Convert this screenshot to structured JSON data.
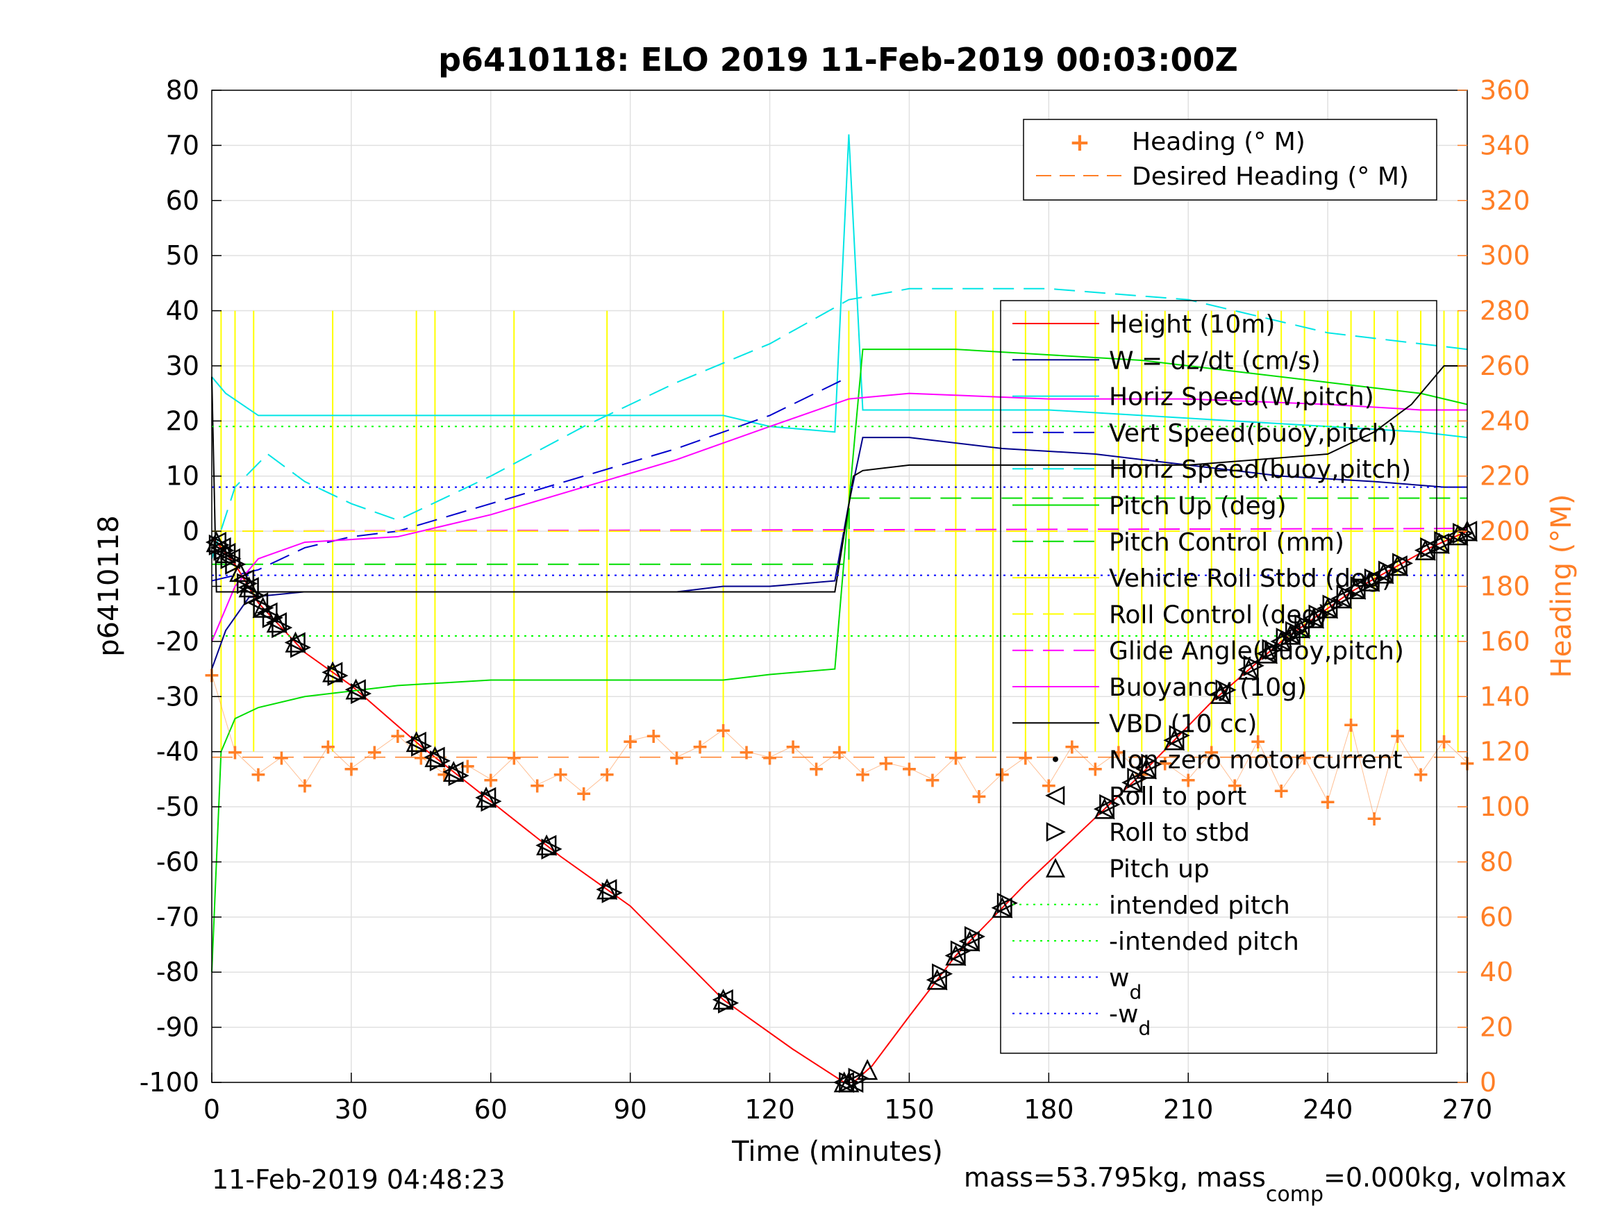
{
  "colors": {
    "heading": "#ff7f27",
    "height": "#ff0000",
    "w": "#00008b",
    "horiz_speed": "#00e5e5",
    "vert_speed_buoy": "#0000cd",
    "pitch_up": "#00dd00",
    "roll": "#ffff00",
    "glide": "#ff00ff",
    "buoyancy": "#ff00ff",
    "vbd": "#000000",
    "wd": "#0000ff",
    "intended": "#00ff00",
    "grid": "#e0e0e0"
  },
  "chart_data": {
    "type": "line",
    "title": "p6410118: ELO 2019 11-Feb-2019 00:03:00Z",
    "xlabel": "Time (minutes)",
    "ylabel": "p6410118",
    "y2label": "Heading (°M)",
    "xlim": [
      0,
      270
    ],
    "ylim": [
      -100,
      80
    ],
    "y2lim": [
      0,
      360
    ],
    "xticks": [
      0,
      30,
      60,
      90,
      120,
      150,
      180,
      210,
      240,
      270
    ],
    "yticks": [
      -100,
      -90,
      -80,
      -70,
      -60,
      -50,
      -40,
      -30,
      -20,
      -10,
      0,
      10,
      20,
      30,
      40,
      50,
      60,
      70,
      80
    ],
    "y2ticks": [
      0,
      20,
      40,
      60,
      80,
      100,
      120,
      140,
      160,
      180,
      200,
      220,
      240,
      260,
      280,
      300,
      320,
      340,
      360
    ],
    "grid": true,
    "legend_right_axis": [
      "Heading (° M)",
      "Desired Heading (° M)"
    ],
    "legend_left_axis": [
      "Height (10m)",
      "W = dz/dt (cm/s)",
      "Horiz Speed(W,pitch)",
      "Vert Speed(buoy,pitch)",
      "Horiz Speed(buoy,pitch)",
      "Pitch Up (deg)",
      "Pitch Control (mm)",
      "Vehicle Roll Stbd (deg)",
      "Roll Control (deg)",
      "Glide Angle(buoy,pitch)",
      "Buoyancy (10g)",
      "VBD (10 cc)",
      "Non-zero motor current",
      "Roll to port",
      "Roll to stbd",
      "Pitch up",
      "intended pitch",
      "-intended pitch",
      "w",
      "-w"
    ],
    "legend_subscript": "d",
    "series": [
      {
        "name": "Height (10m)",
        "x": [
          0,
          5,
          10,
          20,
          30,
          45,
          60,
          75,
          90,
          110,
          125,
          136,
          138,
          142,
          150,
          160,
          175,
          190,
          200,
          215,
          230,
          245,
          262,
          270
        ],
        "values": [
          -1,
          -6,
          -13,
          -22,
          -28,
          -39,
          -49,
          -59,
          -68,
          -85,
          -94,
          -100,
          -100,
          -97,
          -88,
          -77,
          -64,
          -52,
          -44,
          -31,
          -20,
          -11,
          -3,
          0
        ]
      },
      {
        "name": "W = dz/dt (cm/s)",
        "x": [
          0,
          3,
          8,
          20,
          40,
          60,
          80,
          100,
          110,
          120,
          134,
          137,
          140,
          150,
          170,
          190,
          210,
          230,
          250,
          265,
          270
        ],
        "values": [
          -25,
          -18,
          -12,
          -11,
          -11,
          -11,
          -11,
          -11,
          -10,
          -10,
          -9,
          5,
          17,
          17,
          15,
          14,
          12,
          10,
          9,
          8,
          8
        ]
      },
      {
        "name": "Horiz Speed(W,pitch)",
        "x": [
          0,
          3,
          10,
          30,
          60,
          90,
          110,
          120,
          134,
          137,
          140,
          160,
          180,
          200,
          220,
          240,
          260,
          270
        ],
        "values": [
          28,
          25,
          21,
          21,
          21,
          21,
          21,
          19,
          18,
          72,
          22,
          22,
          22,
          21,
          20,
          19,
          18,
          17
        ]
      },
      {
        "name": "Vert Speed(buoy,pitch)",
        "x": [
          0,
          10,
          20,
          30,
          40,
          60,
          80,
          100,
          120,
          137
        ],
        "values": [
          -9,
          -7,
          -3,
          -1,
          0,
          5,
          10,
          15,
          21,
          28
        ]
      },
      {
        "name": "Horiz Speed(buoy,pitch)",
        "x": [
          0,
          5,
          12,
          20,
          30,
          40,
          60,
          80,
          100,
          120,
          137,
          150,
          180,
          210,
          240,
          270
        ],
        "values": [
          -5,
          8,
          14,
          9,
          5,
          2,
          10,
          19,
          27,
          34,
          42,
          44,
          44,
          42,
          36,
          33
        ]
      },
      {
        "name": "Pitch Up (deg)",
        "x": [
          0,
          2,
          5,
          10,
          20,
          40,
          60,
          90,
          110,
          120,
          134,
          137,
          140,
          160,
          180,
          200,
          220,
          240,
          260,
          270
        ],
        "values": [
          -80,
          -40,
          -34,
          -32,
          -30,
          -28,
          -27,
          -27,
          -27,
          -26,
          -25,
          5,
          33,
          33,
          32,
          31,
          29,
          27,
          25,
          23
        ]
      },
      {
        "name": "Pitch Control (mm)",
        "x": [
          0,
          137,
          137.1,
          270
        ],
        "values": [
          -6,
          -6,
          6,
          6
        ]
      },
      {
        "name": "Glide Angle(buoy,pitch)",
        "x": [
          0,
          270
        ],
        "values": [
          0,
          0.5
        ]
      },
      {
        "name": "Buoyancy (10g)",
        "x": [
          0,
          5,
          10,
          20,
          40,
          60,
          80,
          100,
          120,
          137,
          150,
          180,
          210,
          240,
          260,
          270
        ],
        "values": [
          -20,
          -10,
          -5,
          -2,
          -1,
          3,
          8,
          13,
          19,
          24,
          25,
          24,
          24,
          23,
          22,
          22
        ]
      },
      {
        "name": "VBD (10 cc)",
        "x": [
          0,
          1,
          5,
          30,
          60,
          90,
          120,
          134,
          138,
          140,
          150,
          180,
          210,
          240,
          250,
          258,
          265,
          270
        ],
        "values": [
          28,
          -11,
          -11,
          -11,
          -11,
          -11,
          -11,
          -11,
          10,
          11,
          12,
          12,
          12,
          14,
          18,
          23,
          30,
          30
        ]
      },
      {
        "name": "Roll Control (deg)",
        "x": [
          0,
          270
        ],
        "values": [
          0,
          0
        ]
      },
      {
        "name": "intended pitch",
        "x": [
          0,
          270
        ],
        "values": [
          19,
          19
        ]
      },
      {
        "name": "-intended pitch",
        "x": [
          0,
          270
        ],
        "values": [
          -19,
          -19
        ]
      },
      {
        "name": "w",
        "x": [
          0,
          270
        ],
        "values": [
          8,
          8
        ]
      },
      {
        "name": "-w",
        "x": [
          0,
          270
        ],
        "values": [
          -8,
          -8
        ]
      }
    ],
    "roll_spikes": {
      "name": "Vehicle Roll Stbd (deg)",
      "x": [
        2,
        5,
        9,
        26,
        44,
        48,
        65,
        85,
        110,
        137,
        160,
        168,
        175,
        180,
        190,
        195,
        200,
        205,
        210,
        215,
        220,
        225,
        230,
        235,
        240,
        245,
        250,
        255,
        260,
        265,
        268
      ]
    },
    "heading": {
      "name": "Heading (° M)",
      "x": [
        0,
        5,
        10,
        15,
        20,
        25,
        30,
        35,
        40,
        45,
        50,
        55,
        60,
        65,
        70,
        75,
        80,
        85,
        90,
        95,
        100,
        105,
        110,
        115,
        120,
        125,
        130,
        135,
        140,
        145,
        150,
        155,
        160,
        165,
        170,
        175,
        180,
        185,
        190,
        195,
        200,
        205,
        210,
        215,
        220,
        225,
        230,
        235,
        240,
        245,
        250,
        255,
        260,
        265,
        270
      ],
      "values": [
        148,
        120,
        112,
        118,
        108,
        122,
        114,
        120,
        126,
        118,
        112,
        115,
        110,
        118,
        108,
        112,
        105,
        112,
        124,
        126,
        118,
        122,
        128,
        120,
        118,
        122,
        114,
        120,
        112,
        116,
        114,
        110,
        118,
        104,
        112,
        118,
        108,
        122,
        114,
        120,
        112,
        116,
        110,
        120,
        108,
        124,
        106,
        118,
        102,
        130,
        96,
        126,
        112,
        124,
        116
      ]
    },
    "desired_heading": {
      "name": "Desired Heading (° M)",
      "x": [
        0,
        270
      ],
      "values": [
        118,
        118
      ]
    },
    "markers_roll_port": {
      "name": "Roll to port",
      "x": [
        1,
        2,
        3,
        4,
        7,
        8,
        10,
        12,
        14,
        18,
        26,
        31,
        44,
        48,
        52,
        59,
        72,
        85,
        110,
        136,
        138,
        156,
        160,
        163,
        170,
        192,
        198,
        201,
        207,
        217,
        223,
        227,
        230,
        232,
        234,
        237,
        240,
        243,
        246,
        249,
        252,
        255,
        261,
        264,
        268,
        270
      ]
    },
    "markers_roll_stbd": {
      "name": "Roll to stbd",
      "x": [
        1.5,
        2.5,
        4,
        5,
        7.5,
        9,
        11,
        13,
        15,
        19,
        27,
        32,
        45,
        49,
        53,
        60,
        73,
        86,
        111,
        137,
        139,
        157,
        161,
        164,
        171,
        193,
        199,
        202,
        208,
        218,
        224,
        228,
        231,
        233,
        235,
        238,
        241,
        244,
        247,
        250,
        253,
        256,
        262,
        265,
        269
      ]
    },
    "markers_pitch_up": {
      "name": "Pitch up",
      "x": [
        1,
        3,
        6,
        8,
        11,
        14,
        18,
        26,
        31,
        44,
        48,
        52,
        59,
        72,
        85,
        110,
        136,
        137,
        141,
        156,
        160,
        163,
        170,
        192,
        198,
        201,
        207,
        217,
        223,
        227,
        230,
        232,
        234,
        237,
        240,
        243,
        246,
        249,
        252,
        255,
        261,
        264,
        268,
        270
      ]
    }
  },
  "footer": {
    "timestamp": "11-Feb-2019 04:48:23",
    "mass_prefix": "mass=53.795kg, mass",
    "mass_sub": "comp",
    "mass_suffix": "=0.000kg, volmax"
  }
}
